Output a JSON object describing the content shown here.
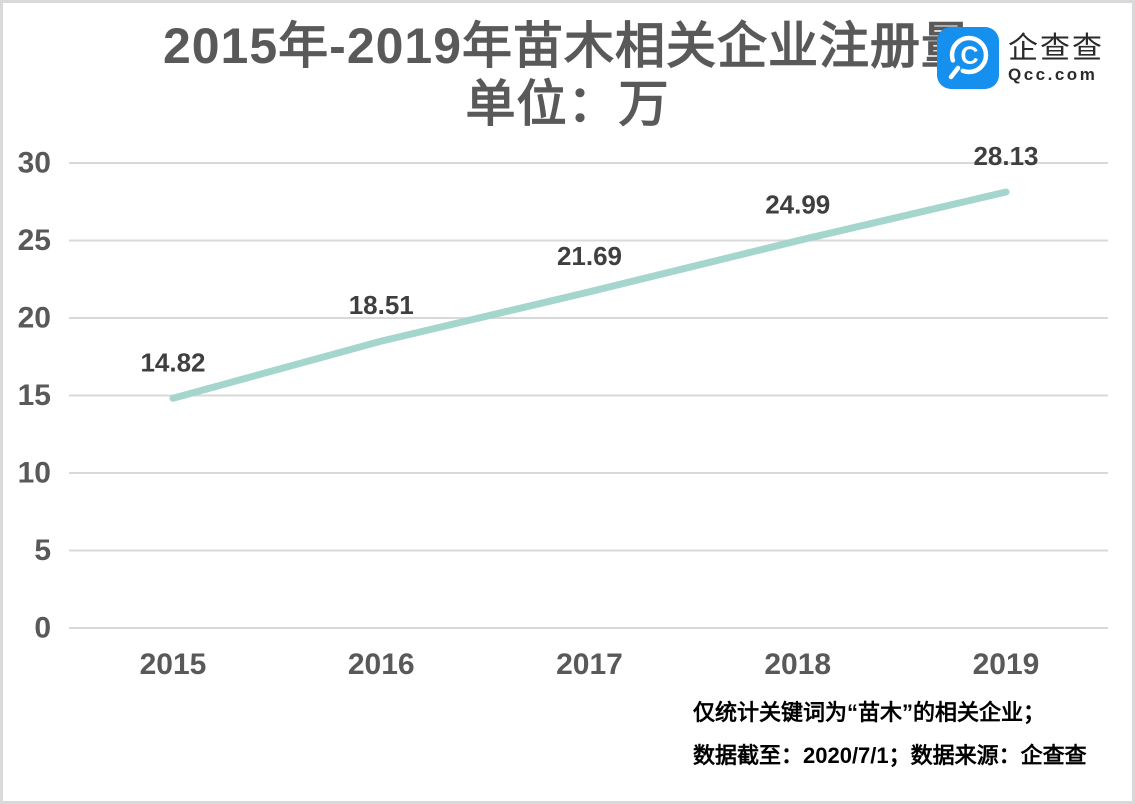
{
  "title": "2015年-2019年苗木相关企业注册量",
  "subtitle": "单位：万",
  "logo": {
    "name": "企查查",
    "domain": "Qcc.com",
    "brand_color": "#1590ee"
  },
  "notes": [
    "仅统计关键词为“苗木”的相关企业；",
    "数据截至：2020/7/1；数据来源：企查查"
  ],
  "chart_data": {
    "type": "line",
    "title": "2015年-2019年苗木相关企业注册量",
    "subtitle": "单位：万",
    "unit": "万",
    "categories": [
      "2015",
      "2016",
      "2017",
      "2018",
      "2019"
    ],
    "values": [
      14.82,
      18.51,
      21.69,
      24.99,
      28.13
    ],
    "xlabel": "",
    "ylabel": "",
    "ylim": [
      0,
      30
    ],
    "ytick_step": 5,
    "yticks": [
      0,
      5,
      10,
      15,
      20,
      25,
      30
    ],
    "grid": true,
    "legend": "none",
    "line_color": "#a5d6cd",
    "grid_color": "#d9d9d9",
    "axis_label_color": "#595959",
    "data_label_color": "#3f3f3f"
  }
}
